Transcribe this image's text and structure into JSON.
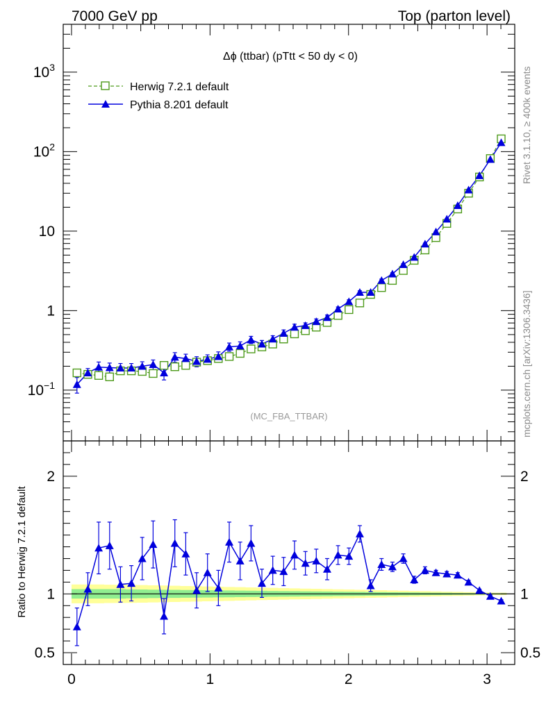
{
  "header": {
    "left": "7000 GeV pp",
    "right": "Top (parton level)"
  },
  "side_labels": {
    "rivet": "Rivet 3.1.10, ≥ 400k events",
    "mcplots": "mcplots.cern.ch [arXiv:1306.3436]"
  },
  "chart_data": [
    {
      "type": "line",
      "title": "Δϕ (ttbar) (pTtt < 50 dy < 0)",
      "watermark": "(MC_FBA_TTBAR)",
      "xlim": [
        -0.06,
        3.2
      ],
      "ylim": [
        0.023,
        4000
      ],
      "yscale": "log",
      "yticks": [
        {
          "value": 0.1,
          "base": "10",
          "exp": "−1"
        },
        {
          "value": 1,
          "base": "1",
          "exp": ""
        },
        {
          "value": 10,
          "base": "10",
          "exp": ""
        },
        {
          "value": 100,
          "base": "10",
          "exp": "2"
        },
        {
          "value": 1000,
          "base": "10",
          "exp": "3"
        }
      ],
      "legend_position": "top-left",
      "x": [
        0.0393,
        0.1178,
        0.1963,
        0.2749,
        0.3534,
        0.432,
        0.5105,
        0.589,
        0.6676,
        0.7461,
        0.8247,
        0.9032,
        0.9817,
        1.0603,
        1.1388,
        1.2174,
        1.2959,
        1.3744,
        1.453,
        1.5315,
        1.6101,
        1.6886,
        1.7671,
        1.8457,
        1.9242,
        2.0028,
        2.0813,
        2.1598,
        2.2384,
        2.3169,
        2.3955,
        2.474,
        2.5525,
        2.6311,
        2.7096,
        2.7882,
        2.8667,
        2.9452,
        3.0238,
        3.1023
      ],
      "series": [
        {
          "name": "Herwig 7.2.1 default",
          "color": "#4d9a1a",
          "marker": "open-square",
          "line": "dashed",
          "values": [
            0.165,
            0.158,
            0.153,
            0.147,
            0.175,
            0.175,
            0.172,
            0.162,
            0.205,
            0.197,
            0.205,
            0.225,
            0.235,
            0.25,
            0.265,
            0.29,
            0.33,
            0.35,
            0.38,
            0.44,
            0.51,
            0.56,
            0.62,
            0.71,
            0.87,
            1.03,
            1.25,
            1.6,
            1.95,
            2.4,
            3.2,
            4.3,
            5.8,
            8.3,
            12.5,
            19.0,
            30.0,
            48.0,
            82.0,
            145.0
          ]
        },
        {
          "name": "Pythia 8.201 default",
          "color": "#0000dd",
          "marker": "filled-triangle",
          "line": "solid",
          "values": [
            0.118,
            0.165,
            0.195,
            0.192,
            0.19,
            0.19,
            0.2,
            0.21,
            0.165,
            0.26,
            0.25,
            0.23,
            0.245,
            0.265,
            0.35,
            0.36,
            0.43,
            0.38,
            0.44,
            0.52,
            0.62,
            0.65,
            0.73,
            0.82,
            1.05,
            1.3,
            1.7,
            1.7,
            2.4,
            2.9,
            3.8,
            4.7,
            6.9,
            9.8,
            14.2,
            21.0,
            33.0,
            50.0,
            80.0,
            130.0
          ]
        }
      ]
    },
    {
      "type": "line",
      "ylabel": "Ratio to Herwig 7.2.1 default",
      "xlim": [
        -0.06,
        3.2
      ],
      "ylim": [
        0.4,
        2.3
      ],
      "xticks": [
        0,
        1,
        2,
        3
      ],
      "yticks": [
        0.5,
        1,
        2
      ],
      "reference": 1,
      "x": [
        0.0393,
        0.1178,
        0.1963,
        0.2749,
        0.3534,
        0.432,
        0.5105,
        0.589,
        0.6676,
        0.7461,
        0.8247,
        0.9032,
        0.9817,
        1.0603,
        1.1388,
        1.2174,
        1.2959,
        1.3744,
        1.453,
        1.5315,
        1.6101,
        1.6886,
        1.7671,
        1.8457,
        1.9242,
        2.0028,
        2.0813,
        2.1598,
        2.2384,
        2.3169,
        2.3955,
        2.474,
        2.5525,
        2.6311,
        2.7096,
        2.7882,
        2.8667,
        2.9452,
        3.0238,
        3.1023
      ],
      "band_inner_halfwidth": [
        0.04,
        0.04,
        0.04,
        0.04,
        0.04,
        0.038,
        0.037,
        0.036,
        0.035,
        0.034,
        0.033,
        0.032,
        0.031,
        0.03,
        0.029,
        0.028,
        0.027,
        0.026,
        0.025,
        0.024,
        0.023,
        0.022,
        0.021,
        0.02,
        0.019,
        0.018,
        0.017,
        0.016,
        0.015,
        0.014,
        0.013,
        0.012,
        0.011,
        0.01,
        0.009,
        0.008,
        0.007,
        0.006,
        0.005,
        0.005
      ],
      "band_outer_halfwidth": [
        0.08,
        0.08,
        0.08,
        0.078,
        0.077,
        0.076,
        0.075,
        0.073,
        0.071,
        0.069,
        0.067,
        0.065,
        0.063,
        0.061,
        0.059,
        0.057,
        0.055,
        0.053,
        0.051,
        0.049,
        0.047,
        0.045,
        0.043,
        0.041,
        0.039,
        0.037,
        0.035,
        0.033,
        0.031,
        0.029,
        0.027,
        0.025,
        0.023,
        0.021,
        0.019,
        0.017,
        0.015,
        0.013,
        0.011,
        0.01
      ],
      "series": [
        {
          "name": "Pythia 8.201 default",
          "color": "#0000dd",
          "values": [
            0.72,
            1.04,
            1.39,
            1.41,
            1.08,
            1.09,
            1.3,
            1.42,
            0.81,
            1.43,
            1.34,
            1.03,
            1.18,
            1.05,
            1.44,
            1.28,
            1.43,
            1.09,
            1.2,
            1.19,
            1.33,
            1.26,
            1.28,
            1.21,
            1.33,
            1.32,
            1.51,
            1.07,
            1.25,
            1.23,
            1.3,
            1.12,
            1.2,
            1.18,
            1.17,
            1.16,
            1.1,
            1.03,
            0.98,
            0.94
          ],
          "errors": [
            0.16,
            0.14,
            0.22,
            0.2,
            0.15,
            0.15,
            0.18,
            0.2,
            0.15,
            0.2,
            0.18,
            0.15,
            0.16,
            0.15,
            0.17,
            0.16,
            0.15,
            0.12,
            0.12,
            0.12,
            0.12,
            0.1,
            0.1,
            0.09,
            0.08,
            0.07,
            0.07,
            0.05,
            0.05,
            0.04,
            0.04,
            0.03,
            0.03,
            0.02,
            0.02,
            0.02,
            0.015,
            0.01,
            0.01,
            0.01
          ]
        }
      ]
    }
  ]
}
